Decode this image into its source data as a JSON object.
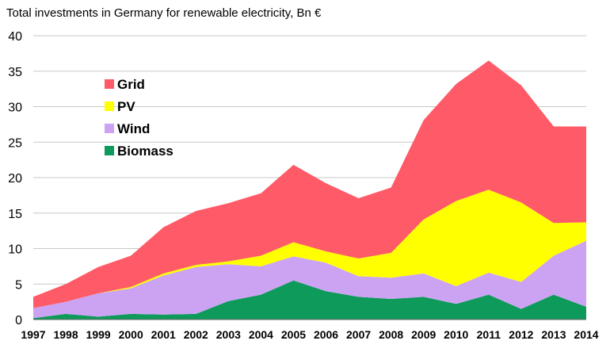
{
  "chart_data": {
    "type": "area",
    "title": "Total investments in Germany for renewable electricity, Bn €",
    "x": [
      1997,
      1998,
      1999,
      2000,
      2001,
      2002,
      2003,
      2004,
      2005,
      2006,
      2007,
      2008,
      2009,
      2010,
      2011,
      2012,
      2013,
      2014
    ],
    "stacked": true,
    "ylim": [
      0,
      40
    ],
    "yticks": [
      0,
      5,
      10,
      15,
      20,
      25,
      30,
      35,
      40
    ],
    "grid": true,
    "legend_position": "top-left",
    "series": [
      {
        "name": "Biomass",
        "color": "#0e9a5a",
        "values": [
          0.2,
          0.8,
          0.4,
          0.8,
          0.7,
          0.8,
          2.6,
          3.5,
          5.5,
          4.0,
          3.2,
          2.9,
          3.2,
          2.2,
          3.5,
          1.5,
          3.5,
          1.8
        ]
      },
      {
        "name": "Wind",
        "color": "#cca3f3",
        "values": [
          1.4,
          1.7,
          3.3,
          3.6,
          5.5,
          6.6,
          5.2,
          4.0,
          3.4,
          4.0,
          2.9,
          3.0,
          3.3,
          2.5,
          3.1,
          3.8,
          5.5,
          9.3
        ]
      },
      {
        "name": "PV",
        "color": "#ffff00",
        "values": [
          0.0,
          0.0,
          0.0,
          0.2,
          0.3,
          0.3,
          0.4,
          1.5,
          2.0,
          1.6,
          2.5,
          3.5,
          7.6,
          12.0,
          11.7,
          11.2,
          4.6,
          2.6
        ]
      },
      {
        "name": "Grid",
        "color": "#ff5a67",
        "values": [
          1.6,
          2.5,
          3.7,
          4.4,
          6.5,
          7.6,
          8.2,
          8.8,
          10.9,
          9.6,
          8.5,
          9.2,
          14.0,
          16.5,
          18.2,
          16.5,
          13.6,
          13.5
        ]
      }
    ],
    "legend_order": [
      "Grid",
      "PV",
      "Wind",
      "Biomass"
    ]
  }
}
